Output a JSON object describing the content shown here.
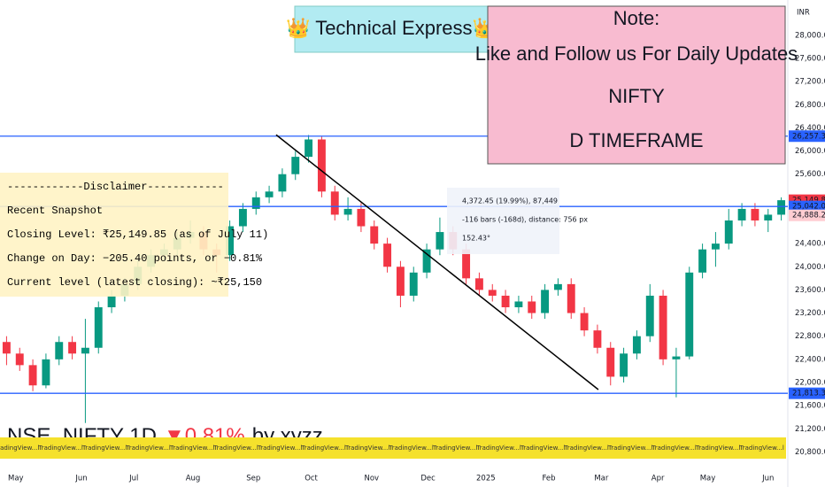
{
  "chart_data": {
    "type": "candlestick",
    "currency": "INR",
    "up_color": "#089981",
    "down_color": "#f23645",
    "candles": [
      [
        22700,
        22800,
        22300,
        22500
      ],
      [
        22500,
        22600,
        22200,
        22300
      ],
      [
        22300,
        22400,
        21850,
        21950
      ],
      [
        21950,
        22500,
        21900,
        22400
      ],
      [
        22400,
        22800,
        22300,
        22700
      ],
      [
        22700,
        22800,
        22400,
        22500
      ],
      [
        22500,
        23100,
        21300,
        22600
      ],
      [
        22600,
        23400,
        22500,
        23300
      ],
      [
        23300,
        23600,
        23200,
        23500
      ],
      [
        23500,
        23800,
        23400,
        23700
      ],
      [
        23700,
        24100,
        23600,
        24000
      ],
      [
        24000,
        24300,
        23900,
        24200
      ],
      [
        24200,
        24400,
        24100,
        24300
      ],
      [
        24300,
        24600,
        24200,
        24500
      ],
      [
        24500,
        24800,
        24400,
        24600
      ],
      [
        24600,
        24700,
        24200,
        24300
      ],
      [
        24300,
        24400,
        23900,
        24200
      ],
      [
        24200,
        24800,
        24100,
        24700
      ],
      [
        24700,
        25100,
        24600,
        25000
      ],
      [
        25000,
        25300,
        24900,
        25200
      ],
      [
        25200,
        25400,
        25100,
        25300
      ],
      [
        25300,
        25700,
        25200,
        25600
      ],
      [
        25600,
        26000,
        25500,
        25900
      ],
      [
        25900,
        26277,
        25800,
        26200
      ],
      [
        26200,
        26250,
        25200,
        25300
      ],
      [
        25300,
        25400,
        24800,
        24900
      ],
      [
        24900,
        25200,
        24800,
        25000
      ],
      [
        25000,
        25100,
        24600,
        24700
      ],
      [
        24700,
        24800,
        24300,
        24400
      ],
      [
        24400,
        24500,
        23900,
        24000
      ],
      [
        24000,
        24100,
        23300,
        23500
      ],
      [
        23500,
        24000,
        23400,
        23900
      ],
      [
        23900,
        24400,
        23800,
        24300
      ],
      [
        24300,
        24850,
        24200,
        24600
      ],
      [
        24600,
        24700,
        24200,
        24300
      ],
      [
        24300,
        24400,
        23700,
        23800
      ],
      [
        23800,
        23900,
        23500,
        23600
      ],
      [
        23600,
        23700,
        23400,
        23500
      ],
      [
        23500,
        23600,
        23200,
        23300
      ],
      [
        23300,
        23500,
        23200,
        23400
      ],
      [
        23400,
        23500,
        23100,
        23200
      ],
      [
        23200,
        23700,
        23100,
        23600
      ],
      [
        23600,
        23800,
        23500,
        23700
      ],
      [
        23700,
        23800,
        23100,
        23200
      ],
      [
        23200,
        23300,
        22800,
        22900
      ],
      [
        22900,
        23000,
        22500,
        22600
      ],
      [
        22600,
        22700,
        21950,
        22100
      ],
      [
        22100,
        22600,
        22000,
        22500
      ],
      [
        22500,
        22900,
        22400,
        22800
      ],
      [
        22800,
        23700,
        22700,
        23500
      ],
      [
        23500,
        23600,
        22300,
        22400
      ],
      [
        22400,
        22600,
        21744,
        22450
      ],
      [
        22450,
        24000,
        22400,
        23900
      ],
      [
        23900,
        24400,
        23800,
        24300
      ],
      [
        24300,
        24600,
        24000,
        24400
      ],
      [
        24400,
        25000,
        24300,
        24800
      ],
      [
        24800,
        25100,
        24700,
        25000
      ],
      [
        25000,
        25100,
        24700,
        24800
      ],
      [
        24800,
        25000,
        24600,
        24900
      ],
      [
        24900,
        25200,
        24800,
        25150
      ]
    ],
    "xlim": [
      0,
      60
    ],
    "xticks": [
      {
        "value": 1.2,
        "label": "May"
      },
      {
        "value": 6.2,
        "label": "Jun"
      },
      {
        "value": 10.2,
        "label": "Jul"
      },
      {
        "value": 14.7,
        "label": "Aug"
      },
      {
        "value": 19.3,
        "label": "Sep"
      },
      {
        "value": 23.7,
        "label": "Oct"
      },
      {
        "value": 28.3,
        "label": "Nov"
      },
      {
        "value": 32.6,
        "label": "Dec"
      },
      {
        "value": 37,
        "label": "2025"
      },
      {
        "value": 41.8,
        "label": "Feb"
      },
      {
        "value": 45.8,
        "label": "Mar"
      },
      {
        "value": 50.1,
        "label": "Apr"
      },
      {
        "value": 53.9,
        "label": "May"
      },
      {
        "value": 58.5,
        "label": "Jun"
      }
    ],
    "ylim": [
      20500,
      28610
    ],
    "yticks": [
      {
        "value": 28000,
        "label": "28,000.00"
      },
      {
        "value": 27600,
        "label": "27,600.00"
      },
      {
        "value": 27200,
        "label": "27,200.00"
      },
      {
        "value": 26800,
        "label": "26,800.00"
      },
      {
        "value": 26400,
        "label": "26,400.00"
      },
      {
        "value": 26000,
        "label": "26,000.00"
      },
      {
        "value": 25600,
        "label": "25,600.00"
      },
      {
        "value": 24400,
        "label": "24,400.00"
      },
      {
        "value": 24000,
        "label": "24,000.00"
      },
      {
        "value": 23600,
        "label": "23,600.00"
      },
      {
        "value": 23200,
        "label": "23,200.00"
      },
      {
        "value": 22800,
        "label": "22,800.00"
      },
      {
        "value": 22400,
        "label": "22,400.00"
      },
      {
        "value": 22000,
        "label": "22,000.00"
      },
      {
        "value": 21600,
        "label": "21,600.00"
      },
      {
        "value": 21200,
        "label": "21,200.00"
      },
      {
        "value": 20800,
        "label": "20,800.00"
      }
    ],
    "levels": [
      {
        "value": 26257.3,
        "label": "26,257.30",
        "color": "#2962ff",
        "line": true
      },
      {
        "value": 25149.85,
        "label": "25,149.85",
        "color": "#f23645",
        "line": false
      },
      {
        "value": 25042.05,
        "label": "25,042.05",
        "color": "#2962ff",
        "line": true
      },
      {
        "value": 24888.2,
        "label": "24,888.20",
        "color": "#ffcdd2",
        "line": false
      },
      {
        "value": 21813.35,
        "label": "21,813.35",
        "color": "#2962ff",
        "line": true
      }
    ],
    "trendline": {
      "x": [
        21.03,
        45.57
      ],
      "y": [
        26280,
        21877
      ]
    },
    "title": "👑 Technical Express👑",
    "note": [
      "Note:",
      "Like and Follow us For Daily Updates",
      "NIFTY",
      "D TIMEFRAME"
    ],
    "disclaimer": [
      "------------Disclaimer------------",
      "Recent Snapshot",
      "Closing Level: ₹25,149.85 (as of July 11)",
      "Change on Day: −205.40 points, or −0.81%",
      "Current level (latest closing): ~₹25,150"
    ],
    "measure": [
      "4,372.45 (19.99%), 87,449",
      "-116 bars (-168d), distance: 756 px",
      "152.43°"
    ],
    "symbol": "NSE_NIFTY 1D",
    "change": "▼0.81%",
    "author": "by xyzz",
    "banner_text": "TradingView...l"
  }
}
